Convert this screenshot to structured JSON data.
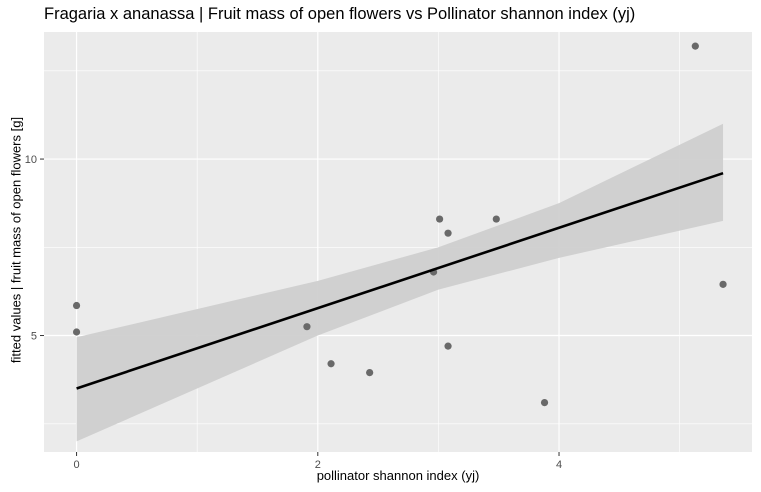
{
  "chart_data": {
    "type": "scatter",
    "title": "Fragaria x ananassa | Fruit mass of open flowers vs Pollinator shannon index (yj)",
    "xlabel": "pollinator shannon index (yj)",
    "ylabel": "fitted values | fruit mass of open flowers [g]",
    "xlim": [
      -0.27,
      5.6
    ],
    "ylim": [
      1.7,
      13.6
    ],
    "x_ticks": [
      0,
      2,
      4
    ],
    "y_ticks": [
      5,
      10
    ],
    "x_tick_labels": [
      "0",
      "2",
      "4"
    ],
    "y_tick_labels": [
      "5",
      "10"
    ],
    "grid": true,
    "points": [
      {
        "x": 0.0,
        "y": 5.85
      },
      {
        "x": 0.0,
        "y": 5.1
      },
      {
        "x": 1.91,
        "y": 5.25
      },
      {
        "x": 2.11,
        "y": 4.2
      },
      {
        "x": 2.43,
        "y": 3.95
      },
      {
        "x": 2.96,
        "y": 6.8
      },
      {
        "x": 3.01,
        "y": 8.3
      },
      {
        "x": 3.08,
        "y": 7.9
      },
      {
        "x": 3.08,
        "y": 4.7
      },
      {
        "x": 3.48,
        "y": 8.3
      },
      {
        "x": 3.88,
        "y": 3.1
      },
      {
        "x": 5.13,
        "y": 13.2
      },
      {
        "x": 5.36,
        "y": 6.45
      }
    ],
    "fit_line": {
      "x": [
        0.0,
        5.36
      ],
      "y": [
        3.5,
        9.6
      ]
    },
    "confidence_band": {
      "x": [
        0.0,
        2.0,
        3.0,
        4.0,
        5.36
      ],
      "upper": [
        4.95,
        6.55,
        7.5,
        8.75,
        11.0
      ],
      "lower": [
        2.0,
        5.0,
        6.3,
        7.2,
        8.25
      ]
    },
    "colors": {
      "panel_background": "#ebebeb",
      "grid": "#ffffff",
      "point": "#696969",
      "line": "#000000",
      "band": "#cfcfcf"
    }
  }
}
